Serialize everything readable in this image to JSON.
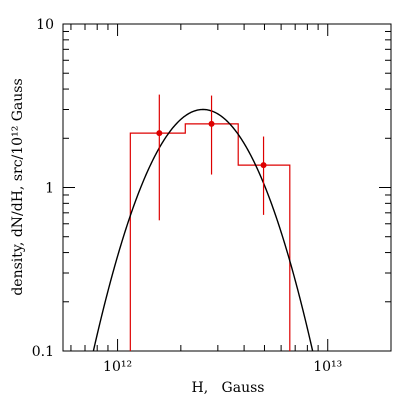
{
  "chart_data": {
    "type": "line",
    "title": "",
    "xlabel": "H,   Gauss",
    "ylabel": "density, dN/dH, src/10¹² Gauss",
    "xscale": "log",
    "yscale": "log",
    "xlim": [
      550000000000.0,
      20000000000000.0
    ],
    "ylim": [
      0.1,
      10
    ],
    "grid": false,
    "x_ticks": [
      {
        "value": 1000000000000.0,
        "label": "10¹²"
      },
      {
        "value": 10000000000000.0,
        "label": "10¹³"
      }
    ],
    "y_ticks": [
      {
        "value": 0.1,
        "label": "0.1"
      },
      {
        "value": 1,
        "label": "1"
      },
      {
        "value": 10,
        "label": "10"
      }
    ],
    "histogram": {
      "color": "#dd0000",
      "bins": [
        {
          "x0": 1150000000000.0,
          "x1": 2100000000000.0,
          "value": 2.15
        },
        {
          "x0": 2100000000000.0,
          "x1": 3750000000000.0,
          "value": 2.45
        },
        {
          "x0": 3750000000000.0,
          "x1": 6600000000000.0,
          "value": 1.37
        }
      ]
    },
    "points": {
      "color": "#dd0000",
      "data": [
        {
          "x": 1580000000000.0,
          "y": 2.15,
          "ylow": 0.63,
          "yhigh": 3.7
        },
        {
          "x": 2800000000000.0,
          "y": 2.45,
          "ylow": 1.2,
          "yhigh": 3.65
        },
        {
          "x": 4950000000000.0,
          "y": 1.37,
          "ylow": 0.68,
          "yhigh": 2.05
        }
      ]
    },
    "curve": {
      "color": "#000000",
      "model": "log-normal",
      "peak_x": 2550000000000.0,
      "peak_y": 3.0,
      "sigma_log10": 0.2
    }
  }
}
